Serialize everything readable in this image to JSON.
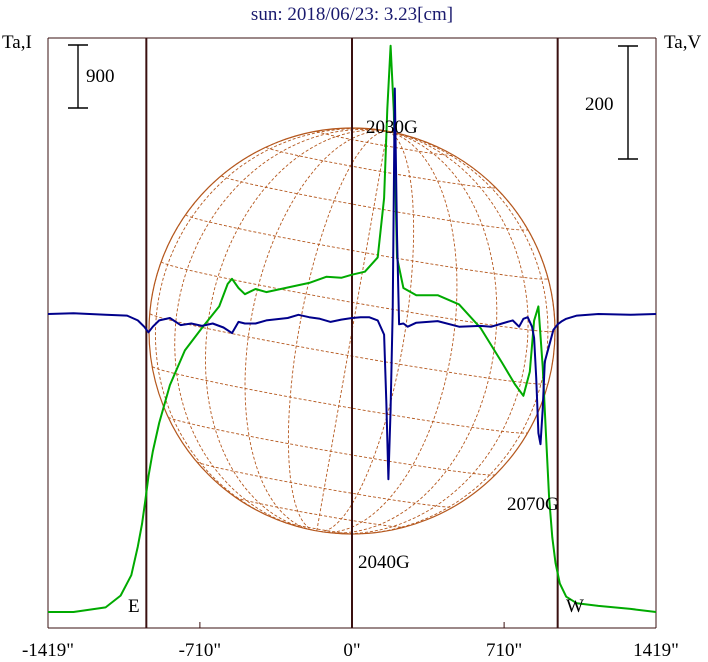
{
  "chart_data": {
    "type": "line",
    "title": "sun: 2018/06/23: 3.23[cm]",
    "left_axis_label": "Ta,I",
    "right_axis_label": "Ta,V",
    "xlim": [
      -1419,
      1419
    ],
    "x_ticks": [
      -1419,
      -710,
      0,
      710,
      1419
    ],
    "x_tick_labels": [
      "-1419\"",
      "-710\"",
      "0\"",
      "710\"",
      "1419\""
    ],
    "limb_labels": {
      "east": "E",
      "west": "W"
    },
    "scale_bars": {
      "left": "900",
      "right": "200"
    },
    "vertical_lines_x": [
      -960,
      0,
      960
    ],
    "colors": {
      "intensity": "#00aa00",
      "polarization": "#00008b",
      "disk": "#b5581e",
      "axes": "#3a1010"
    },
    "annotations": [
      {
        "text": "2030G",
        "x": 175
      },
      {
        "text": "2040G",
        "x": 175
      },
      {
        "text": "2070G",
        "x": 900
      }
    ],
    "series": [
      {
        "key": "I",
        "x": [
          -1419,
          -1300,
          -1150,
          -1080,
          -1030,
          -1000,
          -980,
          -965,
          -950,
          -930,
          -900,
          -850,
          -780,
          -700,
          -620,
          -580,
          -560,
          -530,
          -500,
          -450,
          -400,
          -300,
          -200,
          -120,
          -50,
          0,
          60,
          120,
          150,
          165,
          180,
          195,
          210,
          240,
          300,
          400,
          500,
          600,
          700,
          760,
          800,
          830,
          850,
          870,
          890,
          905,
          920,
          935,
          950,
          970,
          1000,
          1050,
          1150,
          1300,
          1419
        ],
        "y": [
          0,
          0,
          45,
          160,
          360,
          640,
          860,
          1090,
          1330,
          1570,
          1850,
          2220,
          2560,
          2780,
          2990,
          3210,
          3260,
          3170,
          3110,
          3160,
          3130,
          3175,
          3220,
          3280,
          3270,
          3300,
          3330,
          3470,
          4050,
          4920,
          5540,
          4900,
          3470,
          3170,
          3100,
          3100,
          3010,
          2780,
          2440,
          2230,
          2115,
          2350,
          2850,
          2990,
          2400,
          1750,
          1120,
          730,
          480,
          280,
          150,
          85,
          60,
          30,
          0
        ]
      },
      {
        "key": "V",
        "x": [
          -1419,
          -1300,
          -1150,
          -1050,
          -1000,
          -970,
          -950,
          -930,
          -900,
          -850,
          -800,
          -750,
          -700,
          -650,
          -600,
          -560,
          -530,
          -500,
          -450,
          -400,
          -300,
          -250,
          -200,
          -150,
          -100,
          -50,
          0,
          40,
          80,
          120,
          150,
          160,
          170,
          180,
          190,
          200,
          210,
          220,
          240,
          260,
          300,
          400,
          500,
          600,
          650,
          700,
          750,
          780,
          800,
          820,
          840,
          850,
          860,
          870,
          880,
          890,
          900,
          920,
          940,
          960,
          980,
          1000,
          1050,
          1150,
          1300,
          1419
        ],
        "y": [
          0,
          5,
          -5,
          -10,
          -40,
          -80,
          -115,
          -80,
          -40,
          -25,
          -70,
          -60,
          -75,
          -60,
          -85,
          -120,
          -50,
          -60,
          -60,
          -40,
          -25,
          -5,
          -20,
          -30,
          -50,
          -35,
          -25,
          -20,
          -20,
          -40,
          -130,
          -550,
          -1040,
          -600,
          20,
          1420,
          500,
          -65,
          -60,
          -80,
          -55,
          -45,
          -80,
          -75,
          -80,
          -60,
          -40,
          -80,
          -30,
          -20,
          -80,
          -150,
          -400,
          -750,
          -820,
          -600,
          -300,
          -200,
          -100,
          -65,
          -45,
          -30,
          -10,
          0,
          -5,
          0
        ]
      }
    ]
  }
}
